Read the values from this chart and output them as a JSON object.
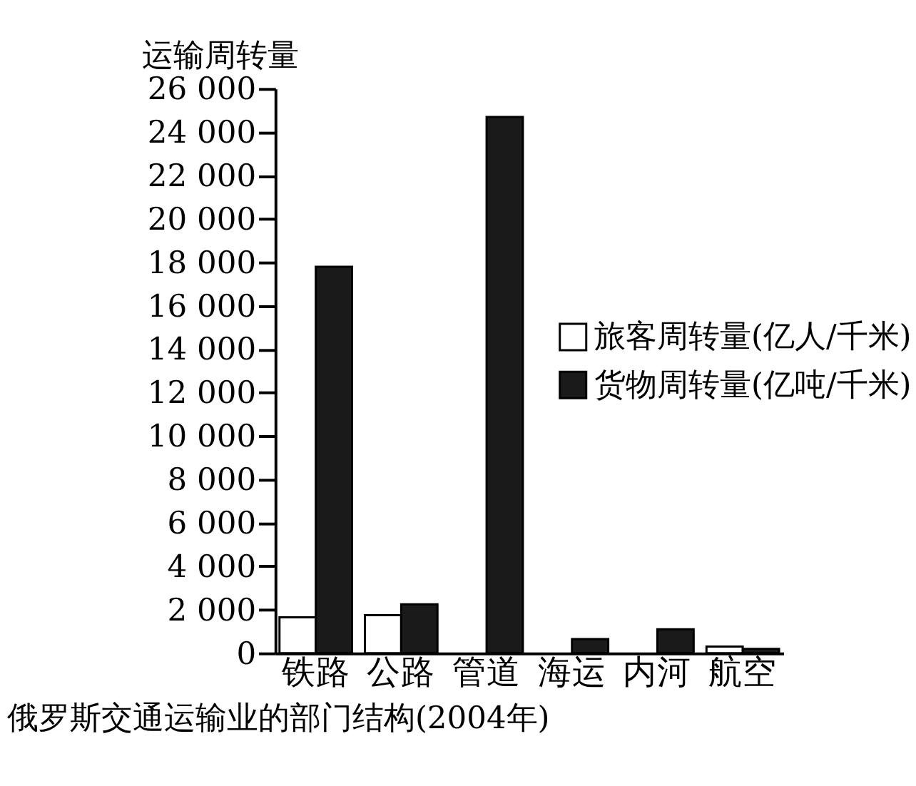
{
  "chart_data": {
    "type": "bar",
    "title": "俄罗斯交通运输业的部门结构(2004年)",
    "ylabel": "运输周转量",
    "categories": [
      "铁路",
      "公路",
      "管道",
      "海运",
      "内河",
      "航空"
    ],
    "series": [
      {
        "name": "旅客周转量(亿人/千米)",
        "color": "#ffffff",
        "values": [
          1650,
          1750,
          null,
          null,
          null,
          300
        ]
      },
      {
        "name": "货物周转量(亿吨/千米)",
        "color": "#1a1a1a",
        "values": [
          17800,
          2250,
          24700,
          650,
          1100,
          200
        ]
      }
    ],
    "ylim": [
      0,
      26000
    ],
    "yticks": [
      {
        "value": 0,
        "label": "0"
      },
      {
        "value": 2000,
        "label": "2 000"
      },
      {
        "value": 4000,
        "label": "4 000"
      },
      {
        "value": 6000,
        "label": "6 000"
      },
      {
        "value": 8000,
        "label": "8 000"
      },
      {
        "value": 10000,
        "label": "10 000"
      },
      {
        "value": 12000,
        "label": "12 000"
      },
      {
        "value": 14000,
        "label": "14 000"
      },
      {
        "value": 16000,
        "label": "16 000"
      },
      {
        "value": 18000,
        "label": "18 000"
      },
      {
        "value": 20000,
        "label": "20 000"
      },
      {
        "value": 22000,
        "label": "22 000"
      },
      {
        "value": 24000,
        "label": "24 000"
      },
      {
        "value": 26000,
        "label": "26 000"
      }
    ],
    "grid": false,
    "legend": "right"
  }
}
